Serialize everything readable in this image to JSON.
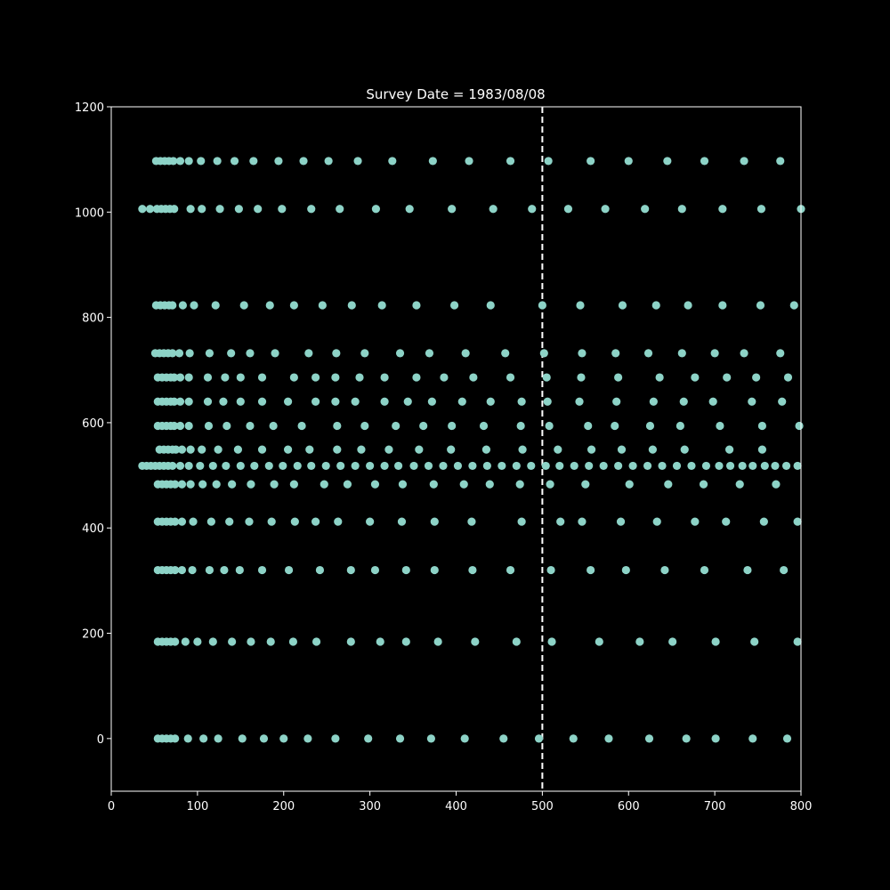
{
  "chart_data": {
    "type": "scatter",
    "title": "Survey Date = 1983/08/08",
    "xlabel": "",
    "ylabel": "",
    "xlim": [
      0,
      800
    ],
    "ylim": [
      -100,
      1200
    ],
    "xticks": [
      0,
      100,
      200,
      300,
      400,
      500,
      600,
      700,
      800
    ],
    "yticks": [
      0,
      200,
      400,
      600,
      800,
      1000,
      1200
    ],
    "grid": false,
    "reference_line": {
      "orientation": "vertical",
      "x": 500,
      "style": "dashed"
    },
    "colors": {
      "background": "#000000",
      "axes": "#ffffff",
      "text": "#ffffff",
      "point": "#8dd3c7",
      "reference_line": "#ffffff"
    },
    "rows": [
      {
        "y": 1097,
        "x": [
          52,
          57,
          62,
          67,
          72,
          80,
          90,
          104,
          123,
          143,
          165,
          194,
          223,
          252,
          286,
          326,
          373,
          415,
          463,
          507,
          556,
          600,
          645,
          688,
          734,
          776
        ]
      },
      {
        "y": 1006,
        "x": [
          36,
          45,
          53,
          58,
          63,
          68,
          73,
          92,
          105,
          126,
          148,
          170,
          198,
          232,
          265,
          307,
          346,
          395,
          443,
          488,
          530,
          573,
          619,
          662,
          709,
          754,
          800
        ]
      },
      {
        "y": 823,
        "x": [
          52,
          57,
          62,
          67,
          71,
          83,
          96,
          121,
          154,
          184,
          212,
          245,
          279,
          314,
          354,
          398,
          440,
          500,
          544,
          593,
          632,
          669,
          709,
          753,
          792
        ]
      },
      {
        "y": 732,
        "x": [
          51,
          56,
          61,
          66,
          71,
          79,
          91,
          114,
          139,
          161,
          190,
          229,
          261,
          294,
          335,
          369,
          411,
          457,
          502,
          546,
          585,
          623,
          662,
          700,
          734,
          776
        ]
      },
      {
        "y": 686,
        "x": [
          54,
          59,
          64,
          69,
          73,
          80,
          90,
          112,
          132,
          150,
          175,
          212,
          237,
          260,
          288,
          317,
          354,
          386,
          420,
          463,
          505,
          545,
          588,
          636,
          677,
          714,
          748,
          785
        ]
      },
      {
        "y": 640,
        "x": [
          54,
          59,
          64,
          69,
          73,
          80,
          90,
          112,
          130,
          150,
          175,
          205,
          237,
          260,
          283,
          317,
          344,
          372,
          407,
          440,
          476,
          506,
          543,
          586,
          629,
          664,
          698,
          743,
          778
        ]
      },
      {
        "y": 594,
        "x": [
          54,
          59,
          64,
          69,
          73,
          80,
          90,
          113,
          134,
          161,
          188,
          221,
          262,
          294,
          330,
          362,
          395,
          432,
          475,
          508,
          553,
          584,
          625,
          660,
          706,
          755,
          798
        ]
      },
      {
        "y": 549,
        "x": [
          56,
          61,
          66,
          71,
          75,
          82,
          92,
          105,
          124,
          147,
          175,
          205,
          230,
          262,
          290,
          322,
          357,
          394,
          435,
          477,
          518,
          557,
          592,
          628,
          665,
          717,
          755
        ]
      },
      {
        "y": 518,
        "x": [
          36,
          41,
          46,
          51,
          56,
          61,
          66,
          71,
          80,
          90,
          103,
          118,
          133,
          150,
          166,
          183,
          199,
          216,
          232,
          249,
          266,
          283,
          300,
          317,
          333,
          351,
          368,
          385,
          402,
          419,
          436,
          453,
          470,
          487,
          504,
          520,
          537,
          554,
          571,
          588,
          605,
          622,
          639,
          656,
          673,
          690,
          705,
          718,
          732,
          744,
          758,
          770,
          783,
          796
        ]
      },
      {
        "y": 483,
        "x": [
          54,
          59,
          64,
          69,
          74,
          82,
          92,
          106,
          122,
          140,
          162,
          189,
          212,
          247,
          274,
          306,
          338,
          374,
          409,
          439,
          474,
          509,
          550,
          601,
          646,
          687,
          729,
          771
        ]
      },
      {
        "y": 412,
        "x": [
          54,
          59,
          64,
          69,
          74,
          82,
          95,
          116,
          137,
          160,
          186,
          213,
          237,
          263,
          300,
          337,
          375,
          418,
          476,
          521,
          546,
          591,
          633,
          677,
          713,
          757,
          796
        ]
      },
      {
        "y": 320,
        "x": [
          54,
          59,
          64,
          69,
          74,
          82,
          94,
          114,
          131,
          149,
          175,
          206,
          242,
          278,
          306,
          342,
          375,
          419,
          463,
          510,
          556,
          597,
          642,
          688,
          738,
          780
        ]
      },
      {
        "y": 184,
        "x": [
          54,
          59,
          64,
          69,
          74,
          86,
          100,
          118,
          140,
          162,
          185,
          211,
          238,
          278,
          312,
          342,
          379,
          422,
          470,
          511,
          566,
          613,
          651,
          701,
          746,
          796
        ]
      },
      {
        "y": 0,
        "x": [
          54,
          59,
          64,
          69,
          74,
          89,
          107,
          124,
          152,
          177,
          200,
          228,
          260,
          298,
          335,
          371,
          410,
          455,
          496,
          536,
          577,
          624,
          667,
          701,
          744,
          784
        ]
      }
    ]
  }
}
